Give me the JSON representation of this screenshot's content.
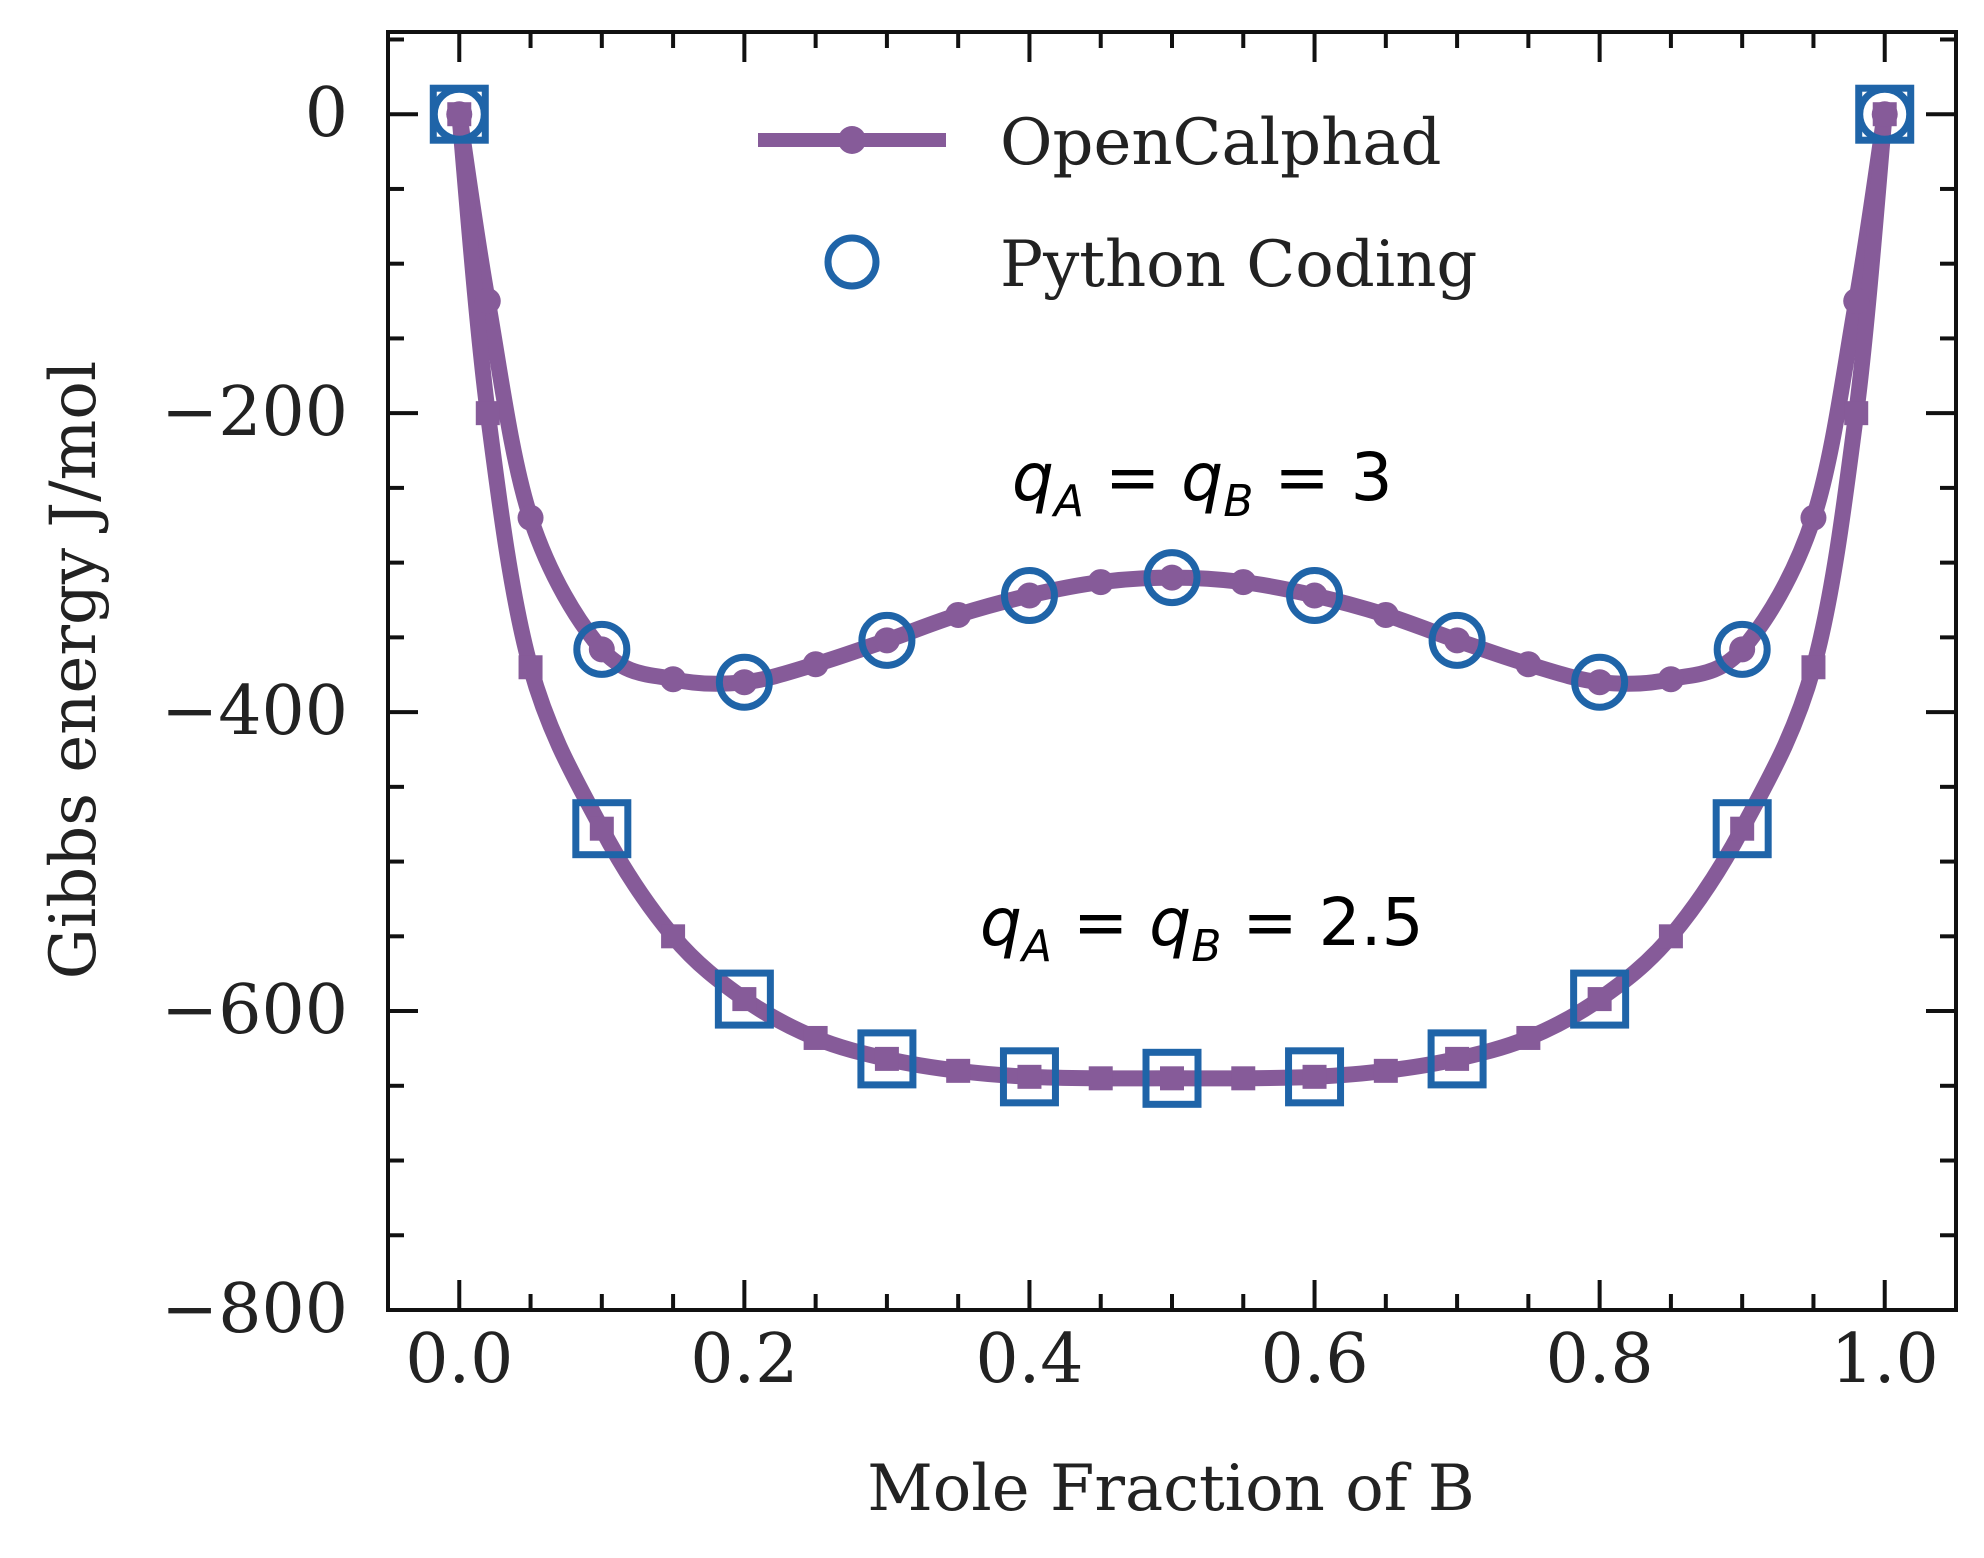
{
  "chart_data": {
    "type": "line",
    "xlabel": "Mole Fraction of B",
    "ylabel": "Gibbs energy  J/mol",
    "xlim": [
      -0.05,
      1.05
    ],
    "ylim": [
      -800,
      55
    ],
    "xticks": [
      "0.0",
      "0.2",
      "0.4",
      "0.6",
      "0.8",
      "1.0"
    ],
    "yticks": [
      "0",
      "−200",
      "−400",
      "−600",
      "−800"
    ],
    "grid": false,
    "legend": {
      "position": "top-center",
      "entries": [
        "OpenCalphad",
        "Python Coding"
      ]
    },
    "annotations": [
      {
        "label": "q_A = q_B = 3",
        "var1": "q",
        "sub1": "A",
        "var2": "q",
        "sub2": "B",
        "value": "3"
      },
      {
        "label": "q_A = q_B = 2.5",
        "var1": "q",
        "sub1": "A",
        "var2": "q",
        "sub2": "B",
        "value": "2.5"
      }
    ],
    "series": [
      {
        "name": "OpenCalphad",
        "curve": "q = 3",
        "marker": "circle-filled",
        "x": [
          0.0,
          0.02,
          0.05,
          0.1,
          0.15,
          0.2,
          0.25,
          0.3,
          0.35,
          0.4,
          0.45,
          0.5,
          0.55,
          0.6,
          0.65,
          0.7,
          0.75,
          0.8,
          0.85,
          0.9,
          0.95,
          0.98,
          1.0
        ],
        "y": [
          0,
          -125,
          -270,
          -358,
          -378,
          -380,
          -368,
          -352,
          -335,
          -322,
          -313,
          -310,
          -313,
          -322,
          -335,
          -352,
          -368,
          -380,
          -378,
          -358,
          -270,
          -125,
          0
        ]
      },
      {
        "name": "OpenCalphad",
        "curve": "q = 2.5",
        "marker": "square-filled",
        "x": [
          0.0,
          0.02,
          0.05,
          0.1,
          0.15,
          0.2,
          0.25,
          0.3,
          0.35,
          0.4,
          0.45,
          0.5,
          0.55,
          0.6,
          0.65,
          0.7,
          0.75,
          0.8,
          0.85,
          0.9,
          0.95,
          0.98,
          1.0
        ],
        "y": [
          0,
          -200,
          -370,
          -478,
          -550,
          -592,
          -618,
          -632,
          -640,
          -644,
          -645,
          -645,
          -645,
          -644,
          -640,
          -632,
          -618,
          -592,
          -550,
          -478,
          -370,
          -200,
          0
        ]
      },
      {
        "name": "Python Coding",
        "curve": "q = 3",
        "marker": "circle-open",
        "x": [
          0.0,
          0.1,
          0.2,
          0.3,
          0.4,
          0.5,
          0.6,
          0.7,
          0.8,
          0.9,
          1.0
        ],
        "y": [
          0,
          -358,
          -380,
          -352,
          -322,
          -310,
          -322,
          -352,
          -380,
          -358,
          0
        ]
      },
      {
        "name": "Python Coding",
        "curve": "q = 2.5",
        "marker": "square-open",
        "x": [
          0.0,
          0.1,
          0.2,
          0.3,
          0.4,
          0.5,
          0.6,
          0.7,
          0.8,
          0.9,
          1.0
        ],
        "y": [
          0,
          -478,
          -592,
          -632,
          -644,
          -645,
          -644,
          -632,
          -592,
          -478,
          0
        ]
      }
    ],
    "colors": {
      "opencalphad": "#865b99",
      "python": "#1f64a8",
      "axis": "#111111"
    }
  }
}
